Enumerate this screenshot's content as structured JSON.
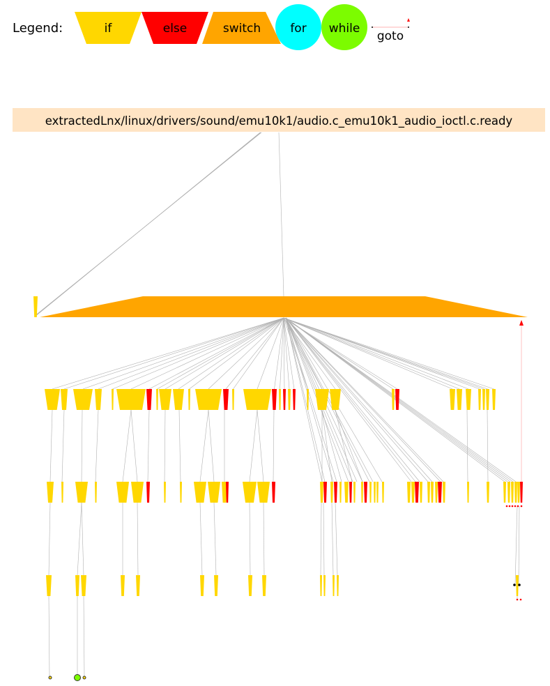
{
  "legend": {
    "label": "Legend:",
    "items": [
      {
        "key": "if",
        "label": "if",
        "color": "#FFD700"
      },
      {
        "key": "else",
        "label": "else",
        "color": "#FF0000"
      },
      {
        "key": "switch",
        "label": "switch",
        "color": "#FFA500"
      },
      {
        "key": "for",
        "label": "for",
        "color": "#00FFFF"
      },
      {
        "key": "while",
        "label": "while",
        "color": "#7CFC00"
      },
      {
        "key": "goto",
        "label": "goto",
        "color": "#FF0000"
      }
    ]
  },
  "root": {
    "label": "extractedLnx/linux/drivers/sound/emu10k1/audio.c_emu10k1_audio_ioctl.c.ready",
    "fill": "#FFE4C4"
  },
  "colors": {
    "edge": "#b0b0b0",
    "goto_edge": "#ff9a9a",
    "node_outline": "#333333"
  }
}
